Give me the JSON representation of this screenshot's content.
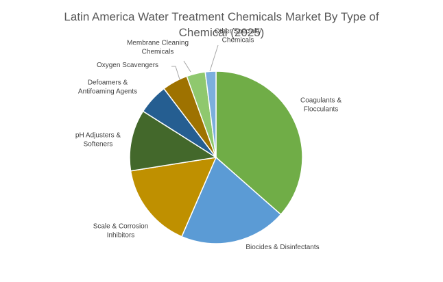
{
  "chart_data": {
    "type": "pie",
    "title_lines": [
      "Latin America Water Treatment Chemicals Market By Type of",
      "Chemical (2025)"
    ],
    "series": [
      {
        "label_lines": [
          "Coagulants &",
          "Flocculants"
        ],
        "value": 36.5,
        "color": "#70ad47"
      },
      {
        "label_lines": [
          "Biocides & Disinfectants"
        ],
        "value": 20.0,
        "color": "#5b9bd5"
      },
      {
        "label_lines": [
          "Scale & Corrosion",
          "Inhibitors"
        ],
        "value": 16.0,
        "color": "#bf9000"
      },
      {
        "label_lines": [
          "pH Adjusters &",
          "Softeners"
        ],
        "value": 11.5,
        "color": "#43682b"
      },
      {
        "label_lines": [
          "Defoamers &",
          "Antifoaming Agents"
        ],
        "value": 5.7,
        "color": "#255e91"
      },
      {
        "label_lines": [
          "Oxygen Scavengers"
        ],
        "value": 4.8,
        "color": "#9e7200"
      },
      {
        "label_lines": [
          "Membrane Cleaning",
          "Chemicals"
        ],
        "value": 3.5,
        "color": "#8fc86e"
      },
      {
        "label_lines": [
          "Other Specialty",
          "Chemicals"
        ],
        "value": 2.0,
        "color": "#7cafdd"
      }
    ],
    "start_angle_deg": 0,
    "direction": "clockwise"
  }
}
